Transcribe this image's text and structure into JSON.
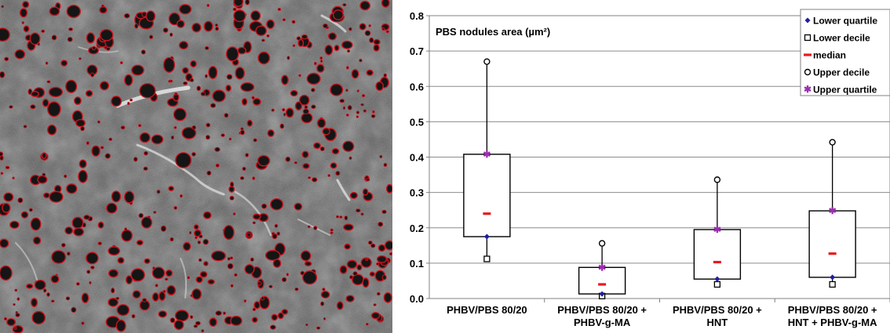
{
  "figure": {
    "left_panel": "sem-micrograph",
    "marker_color": "#c8141e",
    "background_color": "#5a5a5a"
  },
  "chart_data": {
    "type": "box",
    "title": "PBS nodules area (µm²)",
    "ylim": [
      0,
      0.8
    ],
    "yticks": [
      "0.0",
      "0.1",
      "0.2",
      "0.3",
      "0.4",
      "0.5",
      "0.6",
      "0.7",
      "0.8"
    ],
    "grid": true,
    "legend_position": "top-right",
    "categories": [
      [
        "PHBV/PBS 80/20"
      ],
      [
        "PHBV/PBS 80/20 +",
        "PHBV-g-MA"
      ],
      [
        "PHBV/PBS 80/20 +",
        "HNT"
      ],
      [
        "PHBV/PBS 80/20 +",
        "HNT + PHBV-g-MA"
      ]
    ],
    "series": [
      {
        "name": "Lower quartile",
        "marker": "diamond",
        "color": "#1f1f9e",
        "values": [
          0.175,
          0.013,
          0.055,
          0.06
        ]
      },
      {
        "name": "Lower decile",
        "marker": "square",
        "color": "#000000",
        "values": [
          0.112,
          0.007,
          0.04,
          0.04
        ]
      },
      {
        "name": "median",
        "marker": "dash",
        "color": "#e8191f",
        "values": [
          0.24,
          0.04,
          0.103,
          0.127
        ]
      },
      {
        "name": "Upper decile",
        "marker": "circle",
        "color": "#000000",
        "values": [
          0.67,
          0.156,
          0.336,
          0.442
        ]
      },
      {
        "name": "Upper quartile",
        "marker": "star",
        "color": "#9b2fae",
        "values": [
          0.408,
          0.088,
          0.195,
          0.248
        ]
      }
    ]
  }
}
